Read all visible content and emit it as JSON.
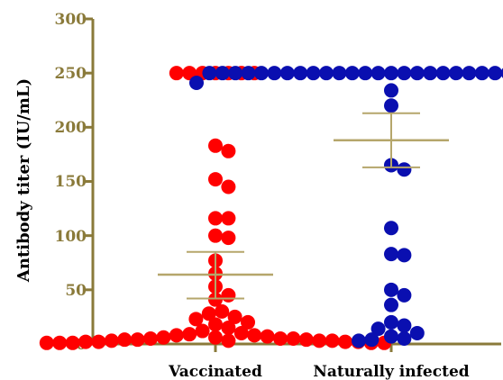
{
  "chart_data": {
    "type": "scatter",
    "title": "",
    "ylabel": "Antibody titer (IU/mL)",
    "xlabel": "",
    "ylim": [
      0,
      300
    ],
    "yticks": [
      0,
      50,
      100,
      150,
      200,
      250,
      300
    ],
    "categories": [
      "Vaccinated",
      "Naturally infected"
    ],
    "series": [
      {
        "category": "Vaccinated",
        "color": "#ff0000",
        "mean": 64,
        "sem_low": 42,
        "sem_high": 85,
        "values": [
          250,
          250,
          250,
          250,
          250,
          250,
          250,
          183,
          178,
          152,
          145,
          116,
          116,
          100,
          98,
          77,
          65,
          53,
          45,
          41,
          30,
          28,
          25,
          23,
          20,
          18,
          15,
          12,
          10,
          9,
          8,
          8,
          7,
          6,
          6,
          5,
          5,
          5,
          4,
          4,
          4,
          3,
          3,
          3,
          3,
          2,
          2,
          2,
          2,
          1,
          1,
          1,
          1,
          1
        ]
      },
      {
        "category": "Naturally infected",
        "color": "#0a0fb0",
        "mean": 188,
        "sem_low": 163,
        "sem_high": 213,
        "values": [
          250,
          250,
          250,
          250,
          250,
          250,
          250,
          250,
          250,
          250,
          250,
          250,
          250,
          250,
          250,
          250,
          250,
          250,
          250,
          250,
          250,
          250,
          250,
          250,
          250,
          250,
          250,
          250,
          250,
          250,
          241,
          234,
          220,
          165,
          161,
          107,
          83,
          82,
          50,
          45,
          36,
          20,
          17,
          14,
          10,
          7,
          5,
          4,
          3
        ]
      }
    ],
    "colors": {
      "axis": "#8a7a3a",
      "tick_label": "#8a7a3a",
      "mean_line": "#b5a66b"
    }
  }
}
